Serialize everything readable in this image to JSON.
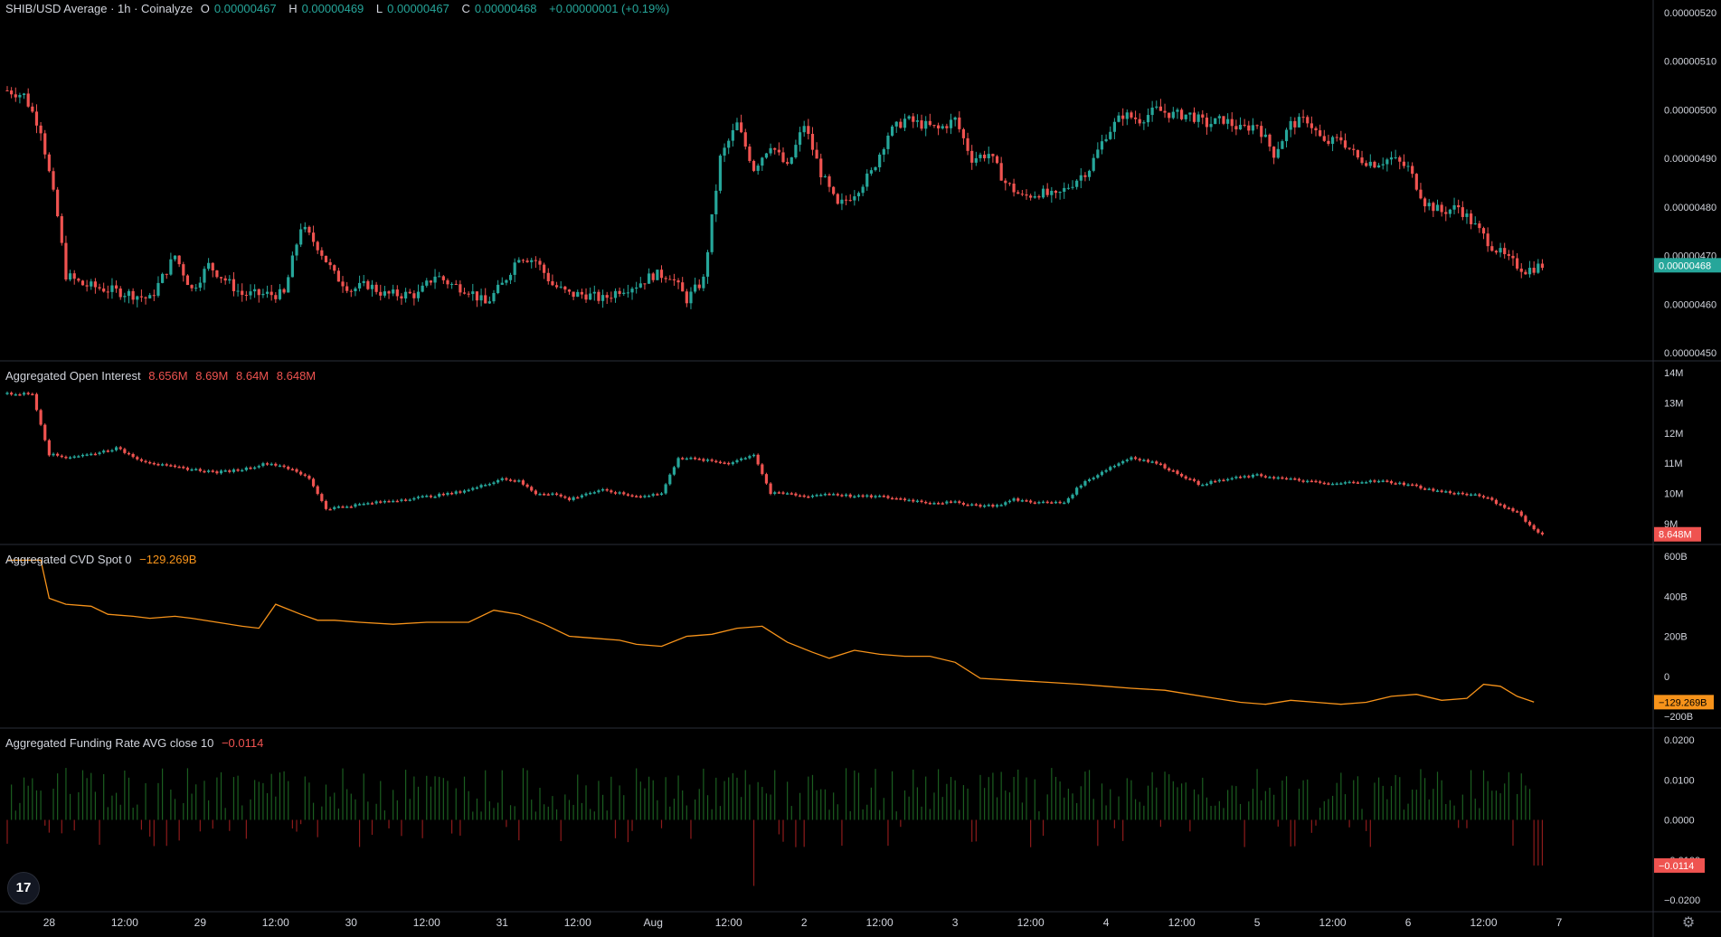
{
  "colors": {
    "up": "#26a69a",
    "down": "#ef5350",
    "cvd_line": "#f7931a",
    "funding_up": "#1b5e20",
    "funding_down": "#8e1b1b",
    "pane_separator": "#2a2e39",
    "axis_text": "#d1d4dc"
  },
  "legends": {
    "price": {
      "title": "SHIB/USD Average · 1h · Coinalyze",
      "o_key": "O",
      "o_val": "0.00000467",
      "h_key": "H",
      "h_val": "0.00000469",
      "l_key": "L",
      "l_val": "0.00000467",
      "c_key": "C",
      "c_val": "0.00000468",
      "change": "+0.00000001 (+0.19%)"
    },
    "oi": {
      "title": "Aggregated Open Interest",
      "v1": "8.656M",
      "v2": "8.69M",
      "v3": "8.64M",
      "v4": "8.648M"
    },
    "cvd": {
      "title": "Aggregated CVD Spot 0",
      "value": "−129.269B"
    },
    "funding": {
      "title": "Aggregated Funding Rate AVG close 10",
      "value": "−0.0114"
    }
  },
  "logo_text": "17",
  "settings_icon": "gear-icon",
  "chart_data": [
    {
      "type": "candlestick",
      "pane": "price",
      "title": "SHIB/USD Average · 1h · Coinalyze",
      "ylim": [
        4.5e-06,
        5.2e-06
      ],
      "yticks": [
        "0.00000520",
        "0.00000510",
        "0.00000500",
        "0.00000490",
        "0.00000480",
        "0.00000470",
        "0.00000460",
        "0.00000450"
      ],
      "last_value": "0.00000468",
      "close_path": [
        [
          0,
          504
        ],
        [
          4,
          503
        ],
        [
          8,
          496
        ],
        [
          12,
          478
        ],
        [
          14,
          466
        ],
        [
          18,
          464
        ],
        [
          24,
          463
        ],
        [
          30,
          462
        ],
        [
          34,
          461
        ],
        [
          40,
          470
        ],
        [
          44,
          463
        ],
        [
          48,
          468
        ],
        [
          52,
          465
        ],
        [
          56,
          462
        ],
        [
          60,
          462
        ],
        [
          66,
          462
        ],
        [
          70,
          476
        ],
        [
          74,
          472
        ],
        [
          78,
          466
        ],
        [
          82,
          463
        ],
        [
          86,
          464
        ],
        [
          90,
          462
        ],
        [
          94,
          462
        ],
        [
          98,
          462
        ],
        [
          102,
          466
        ],
        [
          106,
          464
        ],
        [
          110,
          463
        ],
        [
          114,
          460
        ],
        [
          118,
          464
        ],
        [
          122,
          470
        ],
        [
          126,
          469
        ],
        [
          130,
          464
        ],
        [
          134,
          462
        ],
        [
          138,
          462
        ],
        [
          142,
          461
        ],
        [
          146,
          463
        ],
        [
          150,
          464
        ],
        [
          154,
          466
        ],
        [
          158,
          466
        ],
        [
          162,
          461
        ],
        [
          166,
          465
        ],
        [
          170,
          490
        ],
        [
          174,
          497
        ],
        [
          178,
          488
        ],
        [
          182,
          493
        ],
        [
          186,
          488
        ],
        [
          190,
          497
        ],
        [
          194,
          487
        ],
        [
          198,
          480
        ],
        [
          202,
          483
        ],
        [
          206,
          487
        ],
        [
          210,
          495
        ],
        [
          214,
          498
        ],
        [
          218,
          497
        ],
        [
          222,
          496
        ],
        [
          226,
          498
        ],
        [
          230,
          490
        ],
        [
          234,
          491
        ],
        [
          238,
          485
        ],
        [
          242,
          482
        ],
        [
          246,
          483
        ],
        [
          250,
          482
        ],
        [
          254,
          485
        ],
        [
          258,
          488
        ],
        [
          262,
          495
        ],
        [
          266,
          499
        ],
        [
          270,
          498
        ],
        [
          274,
          500
        ],
        [
          278,
          499
        ],
        [
          282,
          499
        ],
        [
          286,
          497
        ],
        [
          290,
          498
        ],
        [
          294,
          496
        ],
        [
          298,
          497
        ],
        [
          302,
          491
        ],
        [
          306,
          497
        ],
        [
          310,
          498
        ],
        [
          314,
          493
        ],
        [
          318,
          494
        ],
        [
          322,
          490
        ],
        [
          326,
          489
        ],
        [
          330,
          490
        ],
        [
          334,
          488
        ],
        [
          338,
          481
        ],
        [
          342,
          479
        ],
        [
          346,
          480
        ],
        [
          350,
          476
        ],
        [
          354,
          472
        ],
        [
          358,
          469
        ],
        [
          362,
          467
        ],
        [
          366,
          468
        ]
      ],
      "x_range": [
        0,
        370
      ]
    },
    {
      "type": "candlestick",
      "pane": "open_interest",
      "title": "Aggregated Open Interest",
      "ylim": [
        8.7,
        14.0
      ],
      "yticks": [
        "14M",
        "13M",
        "12M",
        "11M",
        "10M",
        "9M"
      ],
      "last_value": "8.648M",
      "close_path": [
        [
          0,
          13.3
        ],
        [
          6,
          13.3
        ],
        [
          8,
          12.3
        ],
        [
          10,
          11.3
        ],
        [
          14,
          11.2
        ],
        [
          20,
          11.3
        ],
        [
          26,
          11.5
        ],
        [
          32,
          11.1
        ],
        [
          38,
          10.9
        ],
        [
          44,
          10.8
        ],
        [
          50,
          10.7
        ],
        [
          56,
          10.8
        ],
        [
          62,
          11.0
        ],
        [
          66,
          10.9
        ],
        [
          72,
          10.5
        ],
        [
          76,
          9.5
        ],
        [
          82,
          9.6
        ],
        [
          88,
          9.7
        ],
        [
          94,
          9.8
        ],
        [
          100,
          9.9
        ],
        [
          106,
          10.0
        ],
        [
          112,
          10.2
        ],
        [
          118,
          10.5
        ],
        [
          122,
          10.4
        ],
        [
          126,
          10.0
        ],
        [
          130,
          10.0
        ],
        [
          134,
          9.8
        ],
        [
          138,
          10.0
        ],
        [
          142,
          10.1
        ],
        [
          146,
          10.0
        ],
        [
          150,
          9.9
        ],
        [
          156,
          10.0
        ],
        [
          160,
          11.2
        ],
        [
          166,
          11.1
        ],
        [
          172,
          11.0
        ],
        [
          178,
          11.3
        ],
        [
          182,
          10.0
        ],
        [
          186,
          10.0
        ],
        [
          190,
          9.9
        ],
        [
          196,
          10.0
        ],
        [
          202,
          9.9
        ],
        [
          208,
          9.9
        ],
        [
          214,
          9.8
        ],
        [
          220,
          9.7
        ],
        [
          226,
          9.7
        ],
        [
          232,
          9.6
        ],
        [
          236,
          9.6
        ],
        [
          240,
          9.8
        ],
        [
          246,
          9.7
        ],
        [
          252,
          9.7
        ],
        [
          256,
          10.3
        ],
        [
          262,
          10.8
        ],
        [
          268,
          11.2
        ],
        [
          274,
          11.0
        ],
        [
          280,
          10.6
        ],
        [
          284,
          10.3
        ],
        [
          288,
          10.4
        ],
        [
          292,
          10.5
        ],
        [
          298,
          10.6
        ],
        [
          304,
          10.5
        ],
        [
          310,
          10.4
        ],
        [
          316,
          10.3
        ],
        [
          322,
          10.4
        ],
        [
          328,
          10.4
        ],
        [
          334,
          10.3
        ],
        [
          340,
          10.1
        ],
        [
          346,
          10.0
        ],
        [
          352,
          9.9
        ],
        [
          356,
          9.6
        ],
        [
          360,
          9.4
        ],
        [
          364,
          8.8
        ],
        [
          366,
          8.65
        ]
      ],
      "x_range": [
        0,
        370
      ]
    },
    {
      "type": "line",
      "pane": "cvd",
      "title": "Aggregated CVD Spot 0",
      "ylim": [
        -200,
        600
      ],
      "yticks": [
        "600B",
        "400B",
        "200B",
        "0",
        "−200B"
      ],
      "last_value": "−129.269B",
      "points": [
        [
          0,
          580
        ],
        [
          8,
          580
        ],
        [
          10,
          390
        ],
        [
          14,
          360
        ],
        [
          20,
          350
        ],
        [
          24,
          310
        ],
        [
          30,
          300
        ],
        [
          34,
          290
        ],
        [
          40,
          300
        ],
        [
          44,
          290
        ],
        [
          50,
          270
        ],
        [
          56,
          250
        ],
        [
          60,
          240
        ],
        [
          64,
          360
        ],
        [
          70,
          310
        ],
        [
          74,
          280
        ],
        [
          78,
          280
        ],
        [
          84,
          270
        ],
        [
          92,
          260
        ],
        [
          100,
          270
        ],
        [
          110,
          270
        ],
        [
          116,
          330
        ],
        [
          122,
          310
        ],
        [
          128,
          260
        ],
        [
          134,
          200
        ],
        [
          140,
          190
        ],
        [
          146,
          180
        ],
        [
          150,
          160
        ],
        [
          156,
          150
        ],
        [
          162,
          200
        ],
        [
          168,
          210
        ],
        [
          174,
          240
        ],
        [
          180,
          250
        ],
        [
          186,
          170
        ],
        [
          192,
          120
        ],
        [
          196,
          90
        ],
        [
          202,
          130
        ],
        [
          208,
          110
        ],
        [
          214,
          100
        ],
        [
          220,
          100
        ],
        [
          226,
          70
        ],
        [
          232,
          -10
        ],
        [
          240,
          -20
        ],
        [
          248,
          -30
        ],
        [
          256,
          -40
        ],
        [
          262,
          -50
        ],
        [
          268,
          -60
        ],
        [
          276,
          -70
        ],
        [
          282,
          -90
        ],
        [
          288,
          -110
        ],
        [
          294,
          -130
        ],
        [
          300,
          -140
        ],
        [
          306,
          -120
        ],
        [
          312,
          -130
        ],
        [
          318,
          -140
        ],
        [
          324,
          -130
        ],
        [
          330,
          -100
        ],
        [
          336,
          -90
        ],
        [
          342,
          -120
        ],
        [
          348,
          -110
        ],
        [
          352,
          -40
        ],
        [
          356,
          -50
        ],
        [
          360,
          -100
        ],
        [
          364,
          -129
        ]
      ],
      "x_range": [
        0,
        370
      ]
    },
    {
      "type": "bar",
      "pane": "funding",
      "title": "Aggregated Funding Rate AVG close 10",
      "ylim": [
        -0.02,
        0.02
      ],
      "yticks": [
        "0.0200",
        "0.0100",
        "0.0000",
        "−0.0100",
        "−0.0200"
      ],
      "last_value": "−0.0114",
      "x_range": [
        0,
        370
      ],
      "values_note_free": true
    }
  ],
  "x_axis": {
    "ticks": [
      {
        "label": "28",
        "x": 10
      },
      {
        "label": "12:00",
        "x": 28
      },
      {
        "label": "29",
        "x": 46
      },
      {
        "label": "12:00",
        "x": 64
      },
      {
        "label": "30",
        "x": 82
      },
      {
        "label": "12:00",
        "x": 100
      },
      {
        "label": "31",
        "x": 118
      },
      {
        "label": "12:00",
        "x": 136
      },
      {
        "label": "Aug",
        "x": 154
      },
      {
        "label": "12:00",
        "x": 172
      },
      {
        "label": "2",
        "x": 190
      },
      {
        "label": "12:00",
        "x": 208
      },
      {
        "label": "3",
        "x": 226
      },
      {
        "label": "12:00",
        "x": 244
      },
      {
        "label": "4",
        "x": 262
      },
      {
        "label": "12:00",
        "x": 280
      },
      {
        "label": "5",
        "x": 298
      },
      {
        "label": "12:00",
        "x": 316
      },
      {
        "label": "6",
        "x": 334
      },
      {
        "label": "12:00",
        "x": 352
      },
      {
        "label": "7",
        "x": 370
      }
    ]
  }
}
